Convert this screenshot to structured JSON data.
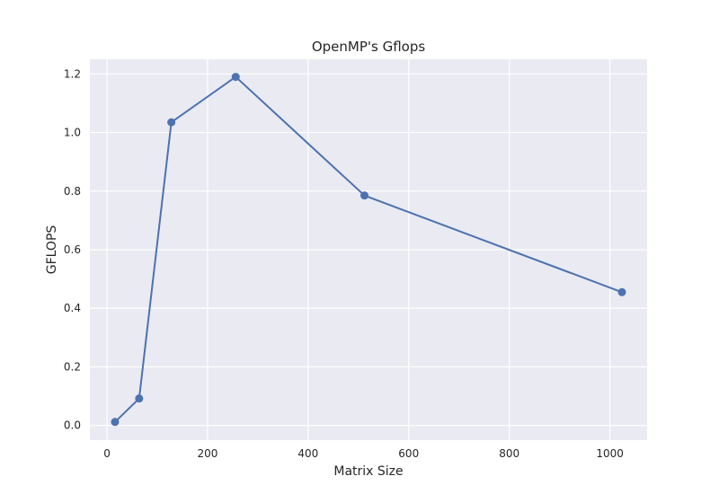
{
  "chart_data": {
    "type": "line",
    "title": "OpenMP's Gflops",
    "xlabel": "Matrix Size",
    "ylabel": "GFLOPS",
    "x": [
      16,
      64,
      128,
      256,
      512,
      1024
    ],
    "series": [
      {
        "values": [
          0.012,
          0.092,
          1.035,
          1.19,
          0.785,
          0.455
        ]
      }
    ],
    "xlim": [
      -34,
      1074
    ],
    "ylim": [
      -0.05,
      1.25
    ],
    "xticks": [
      0,
      200,
      400,
      600,
      800,
      1000
    ],
    "yticks": [
      0.0,
      0.2,
      0.4,
      0.6,
      0.8,
      1.0,
      1.2
    ],
    "xtick_labels": [
      "0",
      "200",
      "400",
      "600",
      "800",
      "1000"
    ],
    "ytick_labels": [
      "0.0",
      "0.2",
      "0.4",
      "0.6",
      "0.8",
      "1.0",
      "1.2"
    ],
    "grid": true,
    "legend": "none",
    "colors": {
      "line": "#4c72b0",
      "plot_background": "#eaeaf2",
      "grid": "#ffffff",
      "text": "#262626"
    },
    "markers": "circle"
  }
}
